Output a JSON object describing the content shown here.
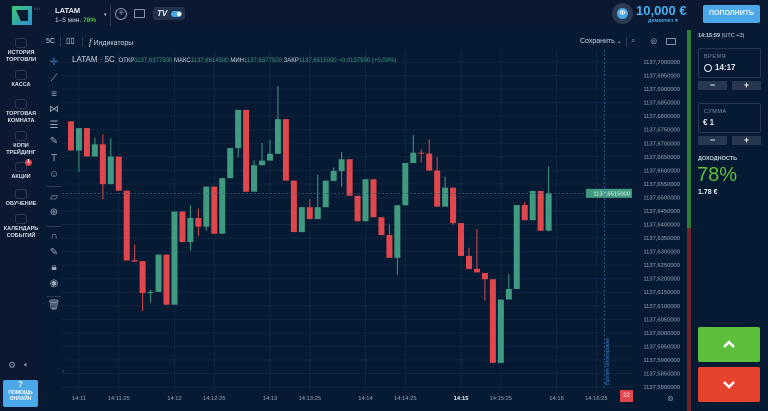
{
  "header": {
    "logo_badge": "RU",
    "asset_name": "LATAM",
    "asset_timeframe": "1–5 мин.",
    "asset_payout": "78%",
    "toggle_label": "TV",
    "balance": "10,000 €",
    "account_type": "демосчет ▾",
    "balance_icon": "Ф",
    "deposit_button": "ПОПОЛНИТЬ"
  },
  "sidebar": {
    "items": [
      {
        "label1": "ИСТОРИЯ",
        "label2": "ТОРГОВЛИ",
        "icon": "clock-icon"
      },
      {
        "label1": "КАССА",
        "label2": "",
        "icon": "wallet-icon"
      },
      {
        "label1": "ТОРГОВАЯ",
        "label2": "КОМНАТА",
        "icon": "tr-icon"
      },
      {
        "label1": "КОПИ",
        "label2": "ТРЕЙДИНГ",
        "icon": "copy-icon"
      },
      {
        "label1": "АКЦИИ",
        "label2": "",
        "icon": "promo-icon",
        "badge": "1"
      },
      {
        "label1": "ОБУЧЕНИЕ",
        "label2": "",
        "icon": "graduation-icon"
      },
      {
        "label1": "КАЛЕНДАРЬ",
        "label2": "СОБЫТИЙ",
        "icon": "calendar-icon"
      }
    ],
    "help_icon": "?",
    "help_label1": "ПОМОЩЬ",
    "help_label2": "ОНЛАЙН"
  },
  "chart_toolbar": {
    "interval": "5С",
    "indicators": "Индикаторы",
    "indicators_icon": "f",
    "save": "Сохранить"
  },
  "legend": {
    "symbol": "LATAM · 5С",
    "open_label": "ОТКР",
    "open": "1137,6377500",
    "high_label": "МАКС",
    "high": "1137,6614500",
    "low_label": "МИН",
    "low": "1137,6377500",
    "close_label": "ЗАКР",
    "close": "1137,6515000",
    "change": "+0,0137500 (+0,00%)"
  },
  "colors": {
    "up": "#3f9a7f",
    "down": "#e0474c",
    "accent": "#4aa8e8",
    "call": "#5cbf3c",
    "put": "#e5432e"
  },
  "chart_data": {
    "type": "candlestick",
    "title": "LATAM · 5С",
    "candle_seconds": 5,
    "first_candle_time": "14:10:55",
    "ohlc": [
      [
        1137.6781,
        1137.6781,
        1137.6673,
        1137.6673
      ],
      [
        1137.6673,
        1137.6756,
        1137.6594,
        1137.6756
      ],
      [
        1137.6756,
        1137.6756,
        1137.6651,
        1137.6651
      ],
      [
        1137.6651,
        1137.6721,
        1137.6651,
        1137.6696
      ],
      [
        1137.6696,
        1137.6733,
        1137.6493,
        1137.6549
      ],
      [
        1137.6549,
        1137.6718,
        1137.6549,
        1137.6651
      ],
      [
        1137.6651,
        1137.6651,
        1137.6525,
        1137.6525
      ],
      [
        1137.6525,
        1137.6525,
        1137.6267,
        1137.6267
      ],
      [
        1137.6268,
        1137.6326,
        1137.6263,
        1137.6263
      ],
      [
        1137.6265,
        1137.6265,
        1137.6081,
        1137.6147
      ],
      [
        1137.6147,
        1137.6159,
        1137.6112,
        1137.6151
      ],
      [
        1137.6151,
        1137.6289,
        1137.6151,
        1137.6289
      ],
      [
        1137.6289,
        1137.6289,
        1137.6104,
        1137.6104
      ],
      [
        1137.6104,
        1137.6448,
        1137.6104,
        1137.6448
      ],
      [
        1137.6448,
        1137.6448,
        1137.6335,
        1137.6335
      ],
      [
        1137.6335,
        1137.6472,
        1137.6304,
        1137.6424
      ],
      [
        1137.6424,
        1137.6459,
        1137.6358,
        1137.6392
      ],
      [
        1137.6392,
        1137.654,
        1137.6377,
        1137.654
      ],
      [
        1137.654,
        1137.654,
        1137.6366,
        1137.6366
      ],
      [
        1137.6366,
        1137.6571,
        1137.6366,
        1137.6571
      ],
      [
        1137.6571,
        1137.6682,
        1137.6571,
        1137.6682
      ],
      [
        1137.6682,
        1137.6823,
        1137.6648,
        1137.6823
      ],
      [
        1137.6823,
        1137.6823,
        1137.6521,
        1137.6521
      ],
      [
        1137.6521,
        1137.6637,
        1137.6521,
        1137.6619
      ],
      [
        1137.6619,
        1137.6701,
        1137.6619,
        1137.6636
      ],
      [
        1137.6636,
        1137.6712,
        1137.6636,
        1137.6661
      ],
      [
        1137.6661,
        1137.6911,
        1137.6661,
        1137.6789
      ],
      [
        1137.6789,
        1137.6789,
        1137.6562,
        1137.6562
      ],
      [
        1137.6562,
        1137.6562,
        1137.6372,
        1137.6372
      ],
      [
        1137.6372,
        1137.6464,
        1137.6372,
        1137.6464
      ],
      [
        1137.6464,
        1137.6494,
        1137.642,
        1137.642
      ],
      [
        1137.642,
        1137.6584,
        1137.642,
        1137.6464
      ],
      [
        1137.6464,
        1137.6562,
        1137.6464,
        1137.6562
      ],
      [
        1137.6561,
        1137.661,
        1137.6561,
        1137.6598
      ],
      [
        1137.6597,
        1137.6668,
        1137.654,
        1137.6641
      ],
      [
        1137.6641,
        1137.6641,
        1137.6506,
        1137.6506
      ],
      [
        1137.6506,
        1137.6506,
        1137.6412,
        1137.6412
      ],
      [
        1137.6412,
        1137.6567,
        1137.6412,
        1137.6567
      ],
      [
        1137.6567,
        1137.6567,
        1137.6427,
        1137.6427
      ],
      [
        1137.6427,
        1137.6427,
        1137.6361,
        1137.6361
      ],
      [
        1137.6361,
        1137.64,
        1137.6277,
        1137.6277
      ],
      [
        1137.6277,
        1137.6471,
        1137.6215,
        1137.6471
      ],
      [
        1137.6471,
        1137.6627,
        1137.6471,
        1137.6627
      ],
      [
        1137.6627,
        1137.673,
        1137.6627,
        1137.6665
      ],
      [
        1137.6665,
        1137.6678,
        1137.6628,
        1137.6662
      ],
      [
        1137.6662,
        1137.6715,
        1137.6599,
        1137.6599
      ],
      [
        1137.6599,
        1137.6648,
        1137.6466,
        1137.6466
      ],
      [
        1137.6466,
        1137.6577,
        1137.6466,
        1137.6536
      ],
      [
        1137.6536,
        1137.6536,
        1137.64,
        1137.6405
      ],
      [
        1137.6405,
        1137.6405,
        1137.6284,
        1137.6284
      ],
      [
        1137.6284,
        1137.6314,
        1137.6236,
        1137.6236
      ],
      [
        1137.6236,
        1137.6383,
        1137.6223,
        1137.6223
      ],
      [
        1137.6221,
        1137.6221,
        1137.6119,
        1137.6198
      ],
      [
        1137.6198,
        1137.6198,
        1137.5889,
        1137.5889
      ],
      [
        1137.5889,
        1137.6123,
        1137.5889,
        1137.6123
      ],
      [
        1137.6123,
        1137.6218,
        1137.6123,
        1137.6162
      ],
      [
        1137.6162,
        1137.6472,
        1137.6162,
        1137.6472
      ],
      [
        1137.6472,
        1137.6483,
        1137.6416,
        1137.6416
      ],
      [
        1137.6416,
        1137.6524,
        1137.6416,
        1137.6524
      ],
      [
        1137.6524,
        1137.6524,
        1137.6377,
        1137.6377
      ],
      [
        1137.6377,
        1137.6614,
        1137.6377,
        1137.6515
      ]
    ],
    "ylim": [
      1137.58,
      1137.7
    ],
    "y_ticks": [
      "1137,7000000",
      "1137,6950000",
      "1137,6900000",
      "1137,6850000",
      "1137,6800000",
      "1137,6750000",
      "1137,6700000",
      "1137,6650000",
      "1137,6600000",
      "1137,6550000",
      "1137,6500000",
      "1137,6450000",
      "1137,6400000",
      "1137,6350000",
      "1137,6300000",
      "1137,6250000",
      "1137,6200000",
      "1137,6150000",
      "1137,6100000",
      "1137,6050000",
      "1137,6000000",
      "1137,5950000",
      "1137,5900000",
      "1137,5850000",
      "1137,5800000"
    ],
    "x_ticks": [
      "14:11",
      "14:11:25",
      "14:12",
      "14:12:25",
      "14:13",
      "14:13:25",
      "14:14",
      "14:14:25",
      "14:15",
      "14:15:25",
      "14:16",
      "14:16:25"
    ],
    "x_tick_bold": "14:15",
    "current_price": 1137.6515,
    "current_price_label": "1137,6515000",
    "lock_time": "14:16:30",
    "lock_label": "Время блокировки",
    "countdown_badge": "22"
  },
  "trade_panel": {
    "server_time": "14:15:59",
    "timezone": "(UTC +3)",
    "time_label": "ВРЕМЯ",
    "time_value": "14:17",
    "amount_label": "СУММА",
    "amount_value": "€ 1",
    "minus": "−",
    "plus": "+",
    "payout_label": "ДОХОДНОСТЬ",
    "payout_percent": "78%",
    "payout_amount": "1.78 €"
  }
}
